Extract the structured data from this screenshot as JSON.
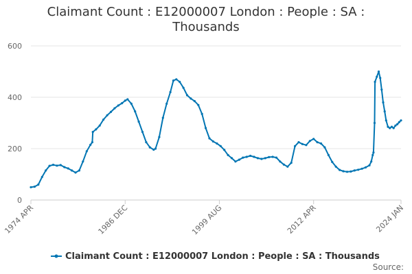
{
  "chart_data": {
    "type": "line",
    "title_lines": [
      "Claimant Count : E12000007 London : People : SA :",
      "Thousands"
    ],
    "ylim": [
      0,
      600
    ],
    "yticks": [
      0,
      200,
      400,
      600
    ],
    "xlim": [
      1974.25,
      2024.0
    ],
    "xticks": [
      {
        "label": "1974 APR",
        "x": 1974.25
      },
      {
        "label": "1986 DEC",
        "x": 1986.92
      },
      {
        "label": "1999 AUG",
        "x": 1999.58
      },
      {
        "label": "2012 APR",
        "x": 2012.25
      },
      {
        "label": "2024 JAN",
        "x": 2024.0
      }
    ],
    "grid": true,
    "legend_position": "bottom",
    "series": [
      {
        "name": "Claimant Count : E12000007 London : People : SA : Thousands",
        "color": "#0075b3",
        "points": [
          [
            1974.25,
            50
          ],
          [
            1974.75,
            52
          ],
          [
            1975.25,
            60
          ],
          [
            1975.75,
            90
          ],
          [
            1976.25,
            115
          ],
          [
            1976.75,
            133
          ],
          [
            1977.25,
            137
          ],
          [
            1977.75,
            134
          ],
          [
            1978.25,
            136
          ],
          [
            1978.75,
            128
          ],
          [
            1979.25,
            123
          ],
          [
            1979.75,
            115
          ],
          [
            1980.25,
            107
          ],
          [
            1980.75,
            115
          ],
          [
            1981.25,
            150
          ],
          [
            1981.75,
            190
          ],
          [
            1982.25,
            215
          ],
          [
            1982.5,
            225
          ],
          [
            1982.58,
            265
          ],
          [
            1983.0,
            275
          ],
          [
            1983.5,
            290
          ],
          [
            1984.0,
            313
          ],
          [
            1984.5,
            330
          ],
          [
            1985.0,
            343
          ],
          [
            1985.5,
            357
          ],
          [
            1986.0,
            368
          ],
          [
            1986.5,
            377
          ],
          [
            1986.92,
            387
          ],
          [
            1987.25,
            392
          ],
          [
            1987.75,
            375
          ],
          [
            1988.25,
            345
          ],
          [
            1988.75,
            305
          ],
          [
            1989.25,
            265
          ],
          [
            1989.75,
            225
          ],
          [
            1990.25,
            205
          ],
          [
            1990.75,
            196
          ],
          [
            1991.0,
            200
          ],
          [
            1991.5,
            245
          ],
          [
            1992.0,
            320
          ],
          [
            1992.5,
            375
          ],
          [
            1993.0,
            420
          ],
          [
            1993.4,
            465
          ],
          [
            1993.8,
            470
          ],
          [
            1994.25,
            460
          ],
          [
            1994.75,
            437
          ],
          [
            1995.25,
            408
          ],
          [
            1995.75,
            395
          ],
          [
            1996.25,
            385
          ],
          [
            1996.75,
            370
          ],
          [
            1997.25,
            335
          ],
          [
            1997.75,
            280
          ],
          [
            1998.25,
            240
          ],
          [
            1998.75,
            228
          ],
          [
            1999.25,
            220
          ],
          [
            1999.75,
            210
          ],
          [
            2000.25,
            195
          ],
          [
            2000.75,
            175
          ],
          [
            2001.25,
            163
          ],
          [
            2001.75,
            150
          ],
          [
            2002.25,
            157
          ],
          [
            2002.75,
            165
          ],
          [
            2003.25,
            168
          ],
          [
            2003.75,
            172
          ],
          [
            2004.25,
            168
          ],
          [
            2004.75,
            163
          ],
          [
            2005.25,
            160
          ],
          [
            2005.75,
            163
          ],
          [
            2006.25,
            167
          ],
          [
            2006.75,
            168
          ],
          [
            2007.25,
            165
          ],
          [
            2007.75,
            150
          ],
          [
            2008.25,
            138
          ],
          [
            2008.75,
            130
          ],
          [
            2009.25,
            145
          ],
          [
            2009.75,
            210
          ],
          [
            2010.25,
            225
          ],
          [
            2010.75,
            218
          ],
          [
            2011.25,
            214
          ],
          [
            2011.75,
            230
          ],
          [
            2012.25,
            238
          ],
          [
            2012.75,
            225
          ],
          [
            2013.25,
            220
          ],
          [
            2013.75,
            205
          ],
          [
            2014.25,
            175
          ],
          [
            2014.75,
            148
          ],
          [
            2015.25,
            130
          ],
          [
            2015.75,
            117
          ],
          [
            2016.25,
            112
          ],
          [
            2016.75,
            110
          ],
          [
            2017.25,
            111
          ],
          [
            2017.75,
            115
          ],
          [
            2018.25,
            118
          ],
          [
            2018.75,
            122
          ],
          [
            2019.25,
            127
          ],
          [
            2019.75,
            135
          ],
          [
            2020.0,
            150
          ],
          [
            2020.2,
            175
          ],
          [
            2020.3,
            185
          ],
          [
            2020.45,
            300
          ],
          [
            2020.5,
            460
          ],
          [
            2020.75,
            480
          ],
          [
            2021.0,
            500
          ],
          [
            2021.2,
            475
          ],
          [
            2021.4,
            430
          ],
          [
            2021.6,
            380
          ],
          [
            2021.8,
            345
          ],
          [
            2022.0,
            310
          ],
          [
            2022.25,
            285
          ],
          [
            2022.5,
            280
          ],
          [
            2022.75,
            285
          ],
          [
            2023.0,
            280
          ],
          [
            2023.25,
            290
          ],
          [
            2023.5,
            295
          ],
          [
            2023.75,
            303
          ],
          [
            2024.0,
            310
          ]
        ]
      }
    ],
    "source_label": "Source:"
  }
}
